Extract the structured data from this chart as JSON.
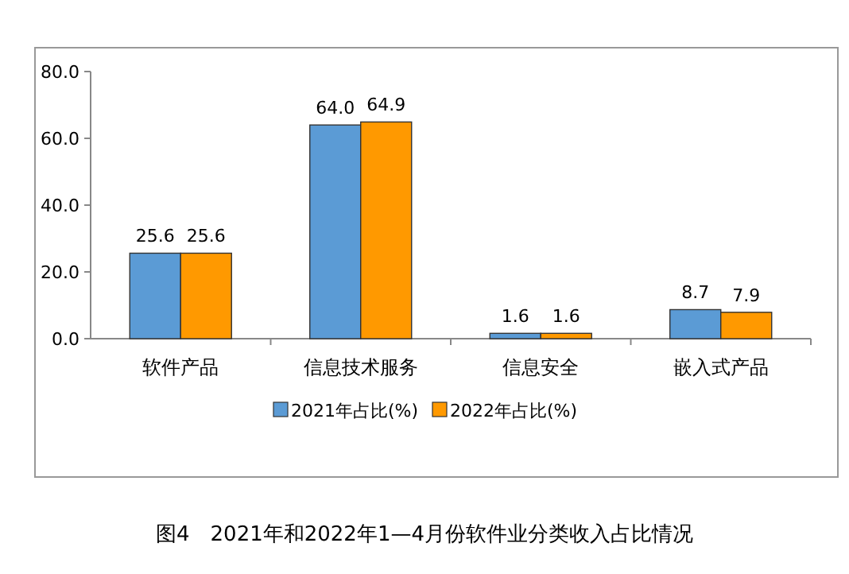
{
  "chart_data": {
    "type": "bar",
    "title": "图4　2021年和2022年1—4月份软件业分类收入占比情况",
    "categories": [
      "软件产品",
      "信息技术服务",
      "信息安全",
      "嵌入式产品"
    ],
    "series": [
      {
        "name": "2021年占比(%)",
        "color": "#5b9bd5",
        "values": [
          25.6,
          64.0,
          1.6,
          8.7
        ],
        "value_labels": [
          "25.6",
          "64.0",
          "1.6",
          "8.7"
        ]
      },
      {
        "name": "2022年占比(%)",
        "color": "#ff9900",
        "values": [
          25.6,
          64.9,
          1.6,
          7.9
        ],
        "value_labels": [
          "25.6",
          "64.9",
          "1.6",
          "7.9"
        ]
      }
    ],
    "ylim": [
      0,
      80
    ],
    "yticks": [
      {
        "value": 0,
        "label": "0.0"
      },
      {
        "value": 20,
        "label": "20.0"
      },
      {
        "value": 40,
        "label": "40.0"
      },
      {
        "value": 60,
        "label": "60.0"
      },
      {
        "value": 80,
        "label": "80.0"
      }
    ],
    "legend": "bottom",
    "grid": false
  }
}
